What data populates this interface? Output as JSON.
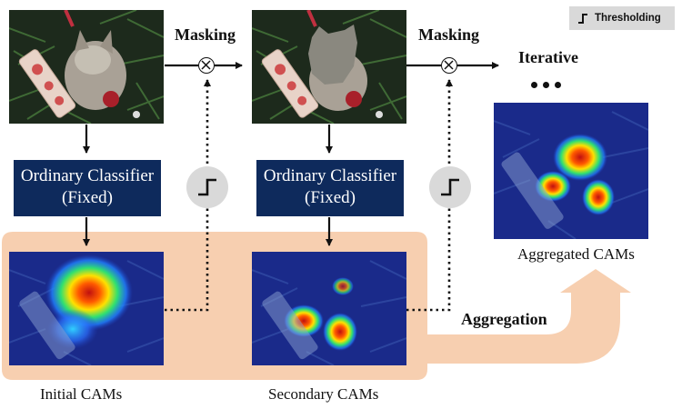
{
  "legend": {
    "label": "Thresholding"
  },
  "stage1": {
    "masking_label": "Masking",
    "classifier_label": "Ordinary Classifier (Fixed)",
    "cam_caption": "Initial CAMs"
  },
  "stage2": {
    "masking_label": "Masking",
    "classifier_label": "Ordinary Classifier (Fixed)",
    "cam_caption": "Secondary CAMs"
  },
  "iterative_label": "Iterative",
  "aggregation_label": "Aggregation",
  "aggregated_caption": "Aggregated CAMs",
  "colors": {
    "classifier_bg": "#0e2a5c",
    "aggregation_band": "#f7cfb0",
    "threshold_circle": "#d9d9d9",
    "cam_background": "#1a2a8a"
  }
}
